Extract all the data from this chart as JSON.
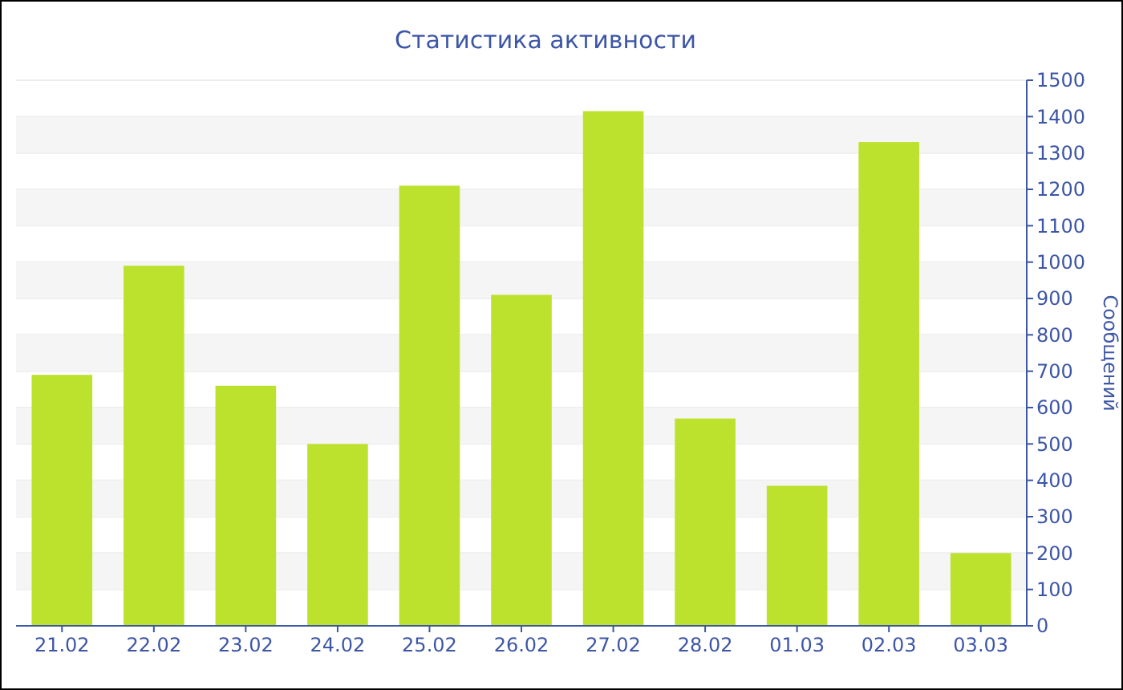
{
  "chart_data": {
    "type": "bar",
    "title": "Статистика активности",
    "y2label": "Сообщений",
    "categories": [
      "21.02",
      "22.02",
      "23.02",
      "24.02",
      "25.02",
      "26.02",
      "27.02",
      "28.02",
      "01.03",
      "02.03",
      "03.03"
    ],
    "series": [
      {
        "color": "#bce22e",
        "values": [
          690,
          990,
          660,
          500,
          1210,
          910,
          1415,
          570,
          385,
          1330,
          200
        ],
        "axis": "y2"
      }
    ],
    "y2lim": [
      0,
      1500
    ],
    "y2ticks": [
      0,
      100,
      200,
      300,
      400,
      500,
      600,
      700,
      800,
      900,
      1000,
      1100,
      1200,
      1300,
      1400,
      1500
    ],
    "grid": "y"
  }
}
